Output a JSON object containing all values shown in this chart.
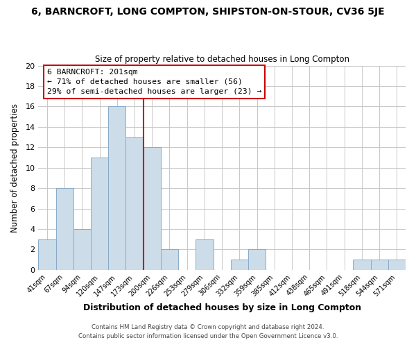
{
  "title": "6, BARNCROFT, LONG COMPTON, SHIPSTON-ON-STOUR, CV36 5JE",
  "subtitle": "Size of property relative to detached houses in Long Compton",
  "xlabel": "Distribution of detached houses by size in Long Compton",
  "ylabel": "Number of detached properties",
  "bar_color": "#ccdce8",
  "bar_edge_color": "#88aac8",
  "bin_labels": [
    "41sqm",
    "67sqm",
    "94sqm",
    "120sqm",
    "147sqm",
    "173sqm",
    "200sqm",
    "226sqm",
    "253sqm",
    "279sqm",
    "306sqm",
    "332sqm",
    "359sqm",
    "385sqm",
    "412sqm",
    "438sqm",
    "465sqm",
    "491sqm",
    "518sqm",
    "544sqm",
    "571sqm"
  ],
  "bar_heights": [
    3,
    8,
    4,
    11,
    16,
    13,
    12,
    2,
    0,
    3,
    0,
    1,
    2,
    0,
    0,
    0,
    0,
    0,
    1,
    1,
    1
  ],
  "vline_x": 6,
  "vline_color": "#cc0000",
  "annotation_title": "6 BARNCROFT: 201sqm",
  "annotation_line1": "← 71% of detached houses are smaller (56)",
  "annotation_line2": "29% of semi-detached houses are larger (23) →",
  "annotation_box_color": "#ffffff",
  "annotation_box_edge_color": "#cc0000",
  "ylim": [
    0,
    20
  ],
  "yticks": [
    0,
    2,
    4,
    6,
    8,
    10,
    12,
    14,
    16,
    18,
    20
  ],
  "footer1": "Contains HM Land Registry data © Crown copyright and database right 2024.",
  "footer2": "Contains public sector information licensed under the Open Government Licence v3.0.",
  "background_color": "#ffffff",
  "grid_color": "#c8c8c8"
}
